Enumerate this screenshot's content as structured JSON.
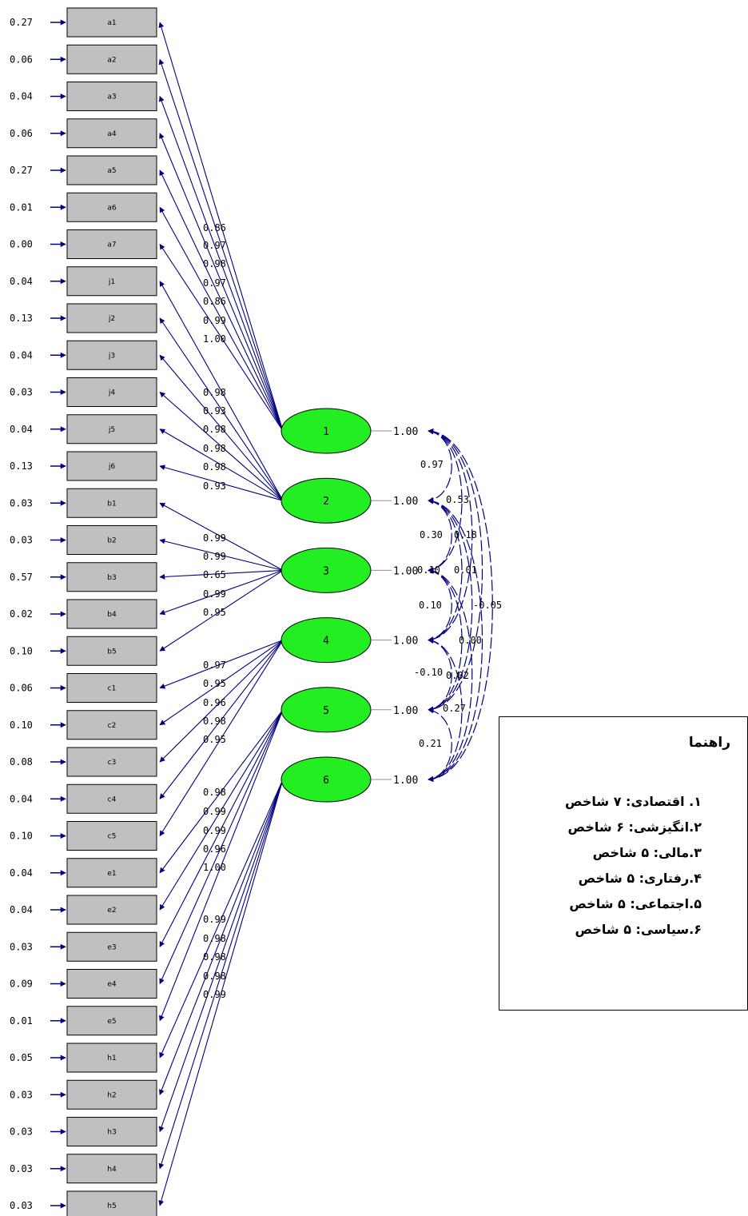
{
  "indicators": [
    {
      "name": "a1",
      "error": "0.27"
    },
    {
      "name": "a2",
      "error": "0.06"
    },
    {
      "name": "a3",
      "error": "0.04"
    },
    {
      "name": "a4",
      "error": "0.06"
    },
    {
      "name": "a5",
      "error": "0.27"
    },
    {
      "name": "a6",
      "error": "0.01"
    },
    {
      "name": "a7",
      "error": "0.00"
    },
    {
      "name": "j1",
      "error": "0.04"
    },
    {
      "name": "j2",
      "error": "0.13"
    },
    {
      "name": "j3",
      "error": "0.04"
    },
    {
      "name": "j4",
      "error": "0.03"
    },
    {
      "name": "j5",
      "error": "0.04"
    },
    {
      "name": "j6",
      "error": "0.13"
    },
    {
      "name": "b1",
      "error": "0.03"
    },
    {
      "name": "b2",
      "error": "0.03"
    },
    {
      "name": "b3",
      "error": "0.57"
    },
    {
      "name": "b4",
      "error": "0.02"
    },
    {
      "name": "b5",
      "error": "0.10"
    },
    {
      "name": "c1",
      "error": "0.06"
    },
    {
      "name": "c2",
      "error": "0.10"
    },
    {
      "name": "c3",
      "error": "0.08"
    },
    {
      "name": "c4",
      "error": "0.04"
    },
    {
      "name": "c5",
      "error": "0.10"
    },
    {
      "name": "e1",
      "error": "0.04"
    },
    {
      "name": "e2",
      "error": "0.04"
    },
    {
      "name": "e3",
      "error": "0.03"
    },
    {
      "name": "e4",
      "error": "0.09"
    },
    {
      "name": "e5",
      "error": "0.01"
    },
    {
      "name": "h1",
      "error": "0.05"
    },
    {
      "name": "h2",
      "error": "0.03"
    },
    {
      "name": "h3",
      "error": "0.03"
    },
    {
      "name": "h4",
      "error": "0.03"
    },
    {
      "name": "h5",
      "error": "0.03"
    }
  ],
  "factors": [
    {
      "label": "1",
      "variance": "1.00",
      "loadings": [
        "0.86",
        "0.97",
        "0.98",
        "0.97",
        "0.86",
        "0.99",
        "1.00"
      ]
    },
    {
      "label": "2",
      "variance": "1.00",
      "loadings": [
        "0.98",
        "0.93",
        "0.98",
        "0.98",
        "0.98",
        "0.93"
      ]
    },
    {
      "label": "3",
      "variance": "1.00",
      "loadings": [
        "0.99",
        "0.99",
        "0.65",
        "0.99",
        "0.95"
      ]
    },
    {
      "label": "4",
      "variance": "1.00",
      "loadings": [
        "0.97",
        "0.95",
        "0.96",
        "0.98",
        "0.95"
      ]
    },
    {
      "label": "5",
      "variance": "1.00",
      "loadings": [
        "0.98",
        "0.99",
        "0.99",
        "0.96",
        "1.00"
      ]
    },
    {
      "label": "6",
      "variance": "1.00",
      "loadings": [
        "0.99",
        "0.98",
        "0.98",
        "0.98",
        "0.99"
      ]
    }
  ],
  "correlation_labels": [
    "0.97",
    "0.53",
    "0.30",
    "0.18",
    "0.10",
    "0.01",
    "0.10",
    "-0.05",
    "0.00",
    "-0.10",
    "0.02",
    "0.27",
    "0.21"
  ],
  "colors": {
    "latent_fill": "#22ee22",
    "path_color": "#000080",
    "box_fill": "#c0c0c0"
  },
  "legend": {
    "title": "راهنما",
    "items": [
      "۱. اقتصادی: ۷ شاخص",
      "۲.انگیزشی: ۶ شاخص",
      "۳.مالی: ۵ شاخص",
      "۴.رفتاری: ۵ شاخص",
      "۵.اجتماعی: ۵ شاخص",
      "۶.سیاسی: ۵ شاخص"
    ]
  }
}
